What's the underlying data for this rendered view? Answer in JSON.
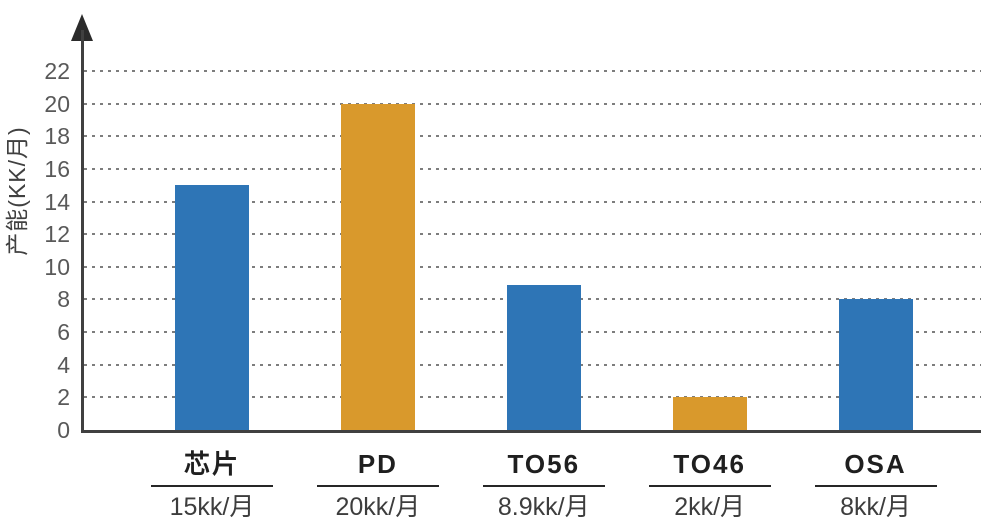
{
  "chart_data": {
    "type": "bar",
    "title": "",
    "ylabel": "产能(KK/月)",
    "xlabel": "",
    "categories": [
      "芯片",
      "PD",
      "TO56",
      "TO46",
      "OSA"
    ],
    "values": [
      15,
      20,
      8.9,
      2,
      8
    ],
    "capacity_labels": [
      "15kk/月",
      "20kk/月",
      "8.9kk/月",
      "2kk/月",
      "8kk/月"
    ],
    "bar_colors": [
      "#2E75B6",
      "#D9992C",
      "#2E75B6",
      "#D9992C",
      "#2E75B6"
    ],
    "yticks": [
      0,
      2,
      4,
      6,
      8,
      10,
      12,
      14,
      16,
      18,
      20,
      22
    ],
    "ylim": [
      0,
      24
    ],
    "grid": "horizontal-dotted",
    "legend_position": "none",
    "colors": {
      "blue_bar": "#2E75B6",
      "orange_bar": "#D9992C",
      "axis": "#404040",
      "gridline": "#7d7d7d",
      "tick_text": "#595959",
      "category_text": "#1f1f1f",
      "capacity_text": "#3d3d3d"
    }
  }
}
